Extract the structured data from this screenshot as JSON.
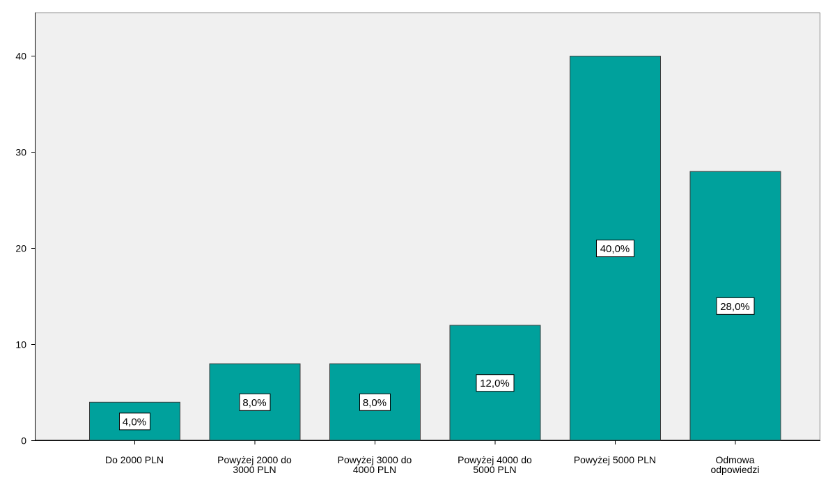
{
  "chart_data": {
    "type": "bar",
    "title": "",
    "xlabel": "",
    "ylabel": "",
    "categories": [
      [
        "Do 2000 PLN"
      ],
      [
        "Powyżej 2000 do",
        "3000 PLN"
      ],
      [
        "Powyżej 3000 do",
        "4000 PLN"
      ],
      [
        "Powyżej 4000 do",
        "5000 PLN"
      ],
      [
        "Powyżej 5000 PLN"
      ],
      [
        "Odmowa",
        "odpowiedzi"
      ]
    ],
    "values": [
      4,
      8,
      8,
      12,
      40,
      28
    ],
    "data_labels": [
      "4,0%",
      "8,0%",
      "8,0%",
      "12,0%",
      "40,0%",
      "28,0%"
    ],
    "ylim": [
      0,
      44.5
    ],
    "yticks": [
      0,
      10,
      20,
      30,
      40
    ],
    "ytick_labels": [
      "0",
      "10",
      "20",
      "30",
      "40"
    ],
    "grid": false,
    "legend": "none",
    "colors": {
      "bar_fill": "#00A19C",
      "bar_stroke": "#3C3C3C",
      "plot_background": "#F0F0F0",
      "axis": "#000000",
      "label_box": "#FFFFFF"
    }
  }
}
